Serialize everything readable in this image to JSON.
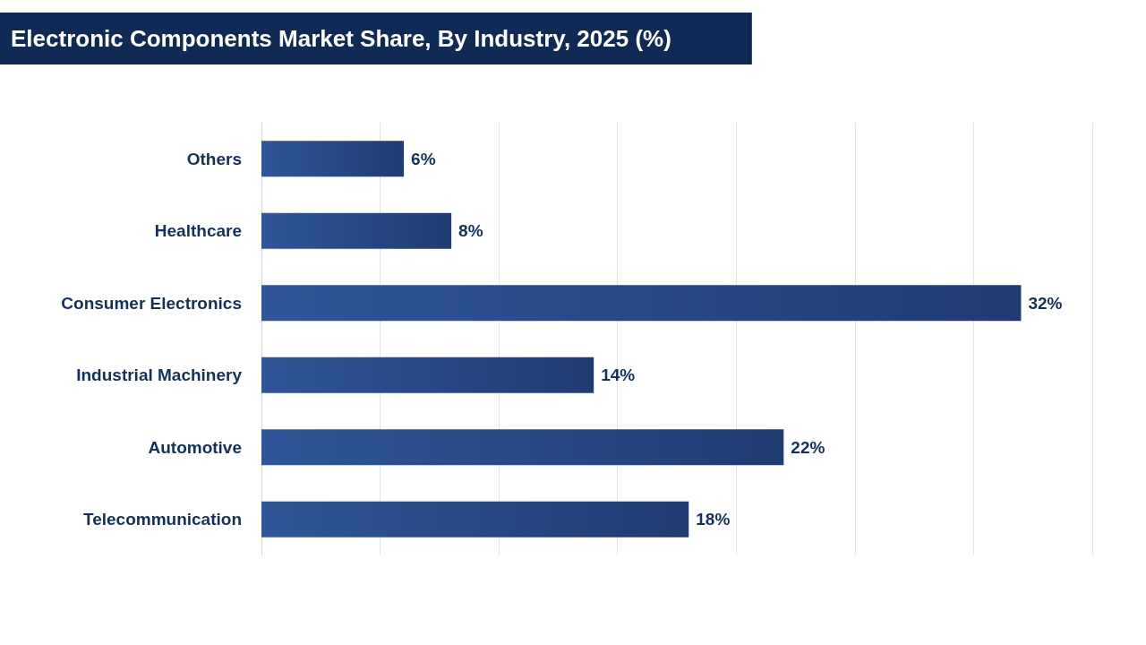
{
  "chart_data": {
    "type": "bar",
    "orientation": "horizontal",
    "title": "Electronic Components Market Share, By Industry, 2025 (%)",
    "categories": [
      "Others",
      "Healthcare",
      "Consumer Electronics",
      "Industrial Machinery",
      "Automotive",
      "Telecommunication"
    ],
    "values": [
      6,
      8,
      32,
      14,
      22,
      18
    ],
    "value_labels": [
      "6%",
      "8%",
      "32%",
      "14%",
      "22%",
      "18%"
    ],
    "color": "#1f3c72",
    "xlim": [
      0,
      35
    ],
    "xticks": [
      {
        "value": 0,
        "label": null
      },
      {
        "value": 5,
        "label": null
      },
      {
        "value": 10,
        "label": null
      },
      {
        "value": 15,
        "label": null
      },
      {
        "value": 20,
        "label": null
      },
      {
        "value": 25,
        "label": null
      },
      {
        "value": 30,
        "label": null
      },
      {
        "value": 35,
        "label": null
      }
    ],
    "tick_labels": "y",
    "grid": "x"
  }
}
